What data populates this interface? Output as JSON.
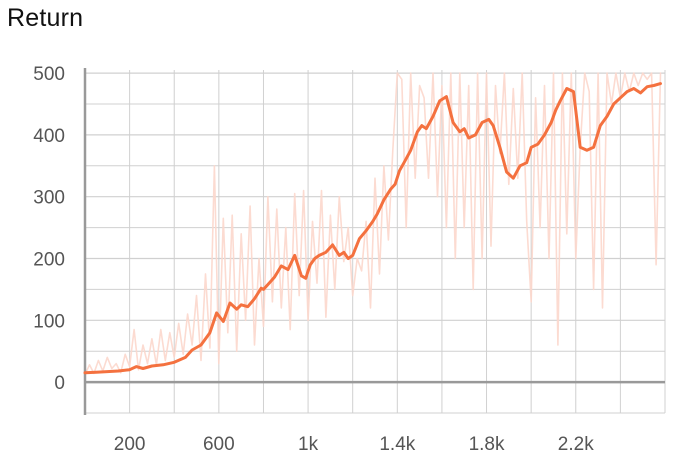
{
  "chart_data": {
    "type": "line",
    "title": "Return",
    "xlabel": "",
    "ylabel": "",
    "xlim": [
      0,
      2600
    ],
    "ylim": [
      -50,
      505
    ],
    "x_ticks": [
      200,
      600,
      1000,
      1400,
      1800,
      2200
    ],
    "x_tick_labels": [
      "200",
      "600",
      "1k",
      "1.4k",
      "1.8k",
      "2.2k"
    ],
    "y_ticks": [
      0,
      100,
      200,
      300,
      400,
      500
    ],
    "y_tick_labels": [
      "0",
      "100",
      "200",
      "300",
      "400",
      "500"
    ],
    "grid": true,
    "legend": "none",
    "colors": {
      "smoothed": "#f4713f",
      "raw": "#fcd7cc",
      "grid": "#d0d0d0",
      "axis": "#999999"
    },
    "series": [
      {
        "role": "smoothed",
        "x": [
          0,
          50,
          100,
          150,
          200,
          230,
          260,
          300,
          350,
          400,
          450,
          480,
          520,
          560,
          590,
          620,
          650,
          680,
          700,
          730,
          760,
          790,
          800,
          830,
          850,
          880,
          910,
          940,
          970,
          990,
          1000,
          1010,
          1030,
          1050,
          1080,
          1110,
          1140,
          1160,
          1180,
          1200,
          1230,
          1260,
          1290,
          1310,
          1340,
          1370,
          1390,
          1410,
          1430,
          1460,
          1490,
          1510,
          1530,
          1560,
          1590,
          1620,
          1650,
          1680,
          1700,
          1720,
          1750,
          1780,
          1810,
          1830,
          1860,
          1890,
          1920,
          1950,
          1980,
          2000,
          2030,
          2060,
          2090,
          2110,
          2130,
          2160,
          2190,
          2220,
          2250,
          2280,
          2310,
          2340,
          2370,
          2400,
          2430,
          2460,
          2490,
          2520,
          2550,
          2580
        ],
        "y": [
          15,
          16,
          17,
          18,
          20,
          25,
          22,
          26,
          28,
          32,
          40,
          52,
          60,
          80,
          112,
          98,
          128,
          118,
          125,
          122,
          135,
          152,
          150,
          162,
          170,
          188,
          182,
          205,
          172,
          168,
          180,
          190,
          200,
          205,
          210,
          222,
          205,
          210,
          200,
          205,
          232,
          245,
          260,
          272,
          295,
          312,
          320,
          342,
          355,
          375,
          405,
          415,
          410,
          430,
          455,
          462,
          420,
          405,
          410,
          395,
          400,
          420,
          425,
          415,
          380,
          340,
          330,
          350,
          355,
          380,
          385,
          400,
          420,
          440,
          455,
          475,
          470,
          380,
          375,
          380,
          415,
          430,
          450,
          460,
          470,
          475,
          468,
          478,
          480,
          483
        ]
      },
      {
        "role": "raw",
        "x": [
          0,
          20,
          40,
          60,
          80,
          100,
          120,
          140,
          160,
          180,
          200,
          220,
          240,
          260,
          280,
          300,
          320,
          340,
          360,
          380,
          400,
          420,
          440,
          460,
          480,
          500,
          520,
          540,
          560,
          580,
          600,
          620,
          640,
          660,
          680,
          700,
          720,
          740,
          760,
          780,
          800,
          820,
          840,
          860,
          880,
          900,
          920,
          940,
          960,
          980,
          1000,
          1020,
          1040,
          1060,
          1080,
          1100,
          1120,
          1140,
          1160,
          1180,
          1200,
          1220,
          1240,
          1260,
          1280,
          1300,
          1320,
          1340,
          1360,
          1380,
          1400,
          1420,
          1440,
          1460,
          1480,
          1500,
          1520,
          1540,
          1560,
          1580,
          1600,
          1620,
          1640,
          1660,
          1680,
          1700,
          1720,
          1740,
          1760,
          1780,
          1800,
          1820,
          1840,
          1860,
          1880,
          1900,
          1920,
          1940,
          1960,
          1980,
          2000,
          2020,
          2040,
          2060,
          2080,
          2100,
          2120,
          2140,
          2160,
          2180,
          2200,
          2220,
          2240,
          2260,
          2280,
          2300,
          2320,
          2340,
          2360,
          2380,
          2400,
          2420,
          2440,
          2460,
          2480,
          2500,
          2520,
          2540,
          2560,
          2580
        ],
        "y": [
          12,
          28,
          14,
          35,
          18,
          40,
          22,
          30,
          15,
          45,
          25,
          85,
          20,
          60,
          30,
          70,
          28,
          85,
          35,
          80,
          40,
          95,
          45,
          110,
          60,
          140,
          35,
          175,
          55,
          350,
          30,
          265,
          80,
          270,
          50,
          240,
          100,
          285,
          60,
          200,
          90,
          300,
          130,
          280,
          120,
          250,
          85,
          305,
          140,
          310,
          100,
          260,
          160,
          310,
          105,
          270,
          150,
          300,
          195,
          250,
          140,
          200,
          180,
          260,
          120,
          330,
          175,
          350,
          230,
          375,
          500,
          490,
          250,
          500,
          330,
          480,
          460,
          330,
          500,
          300,
          480,
          250,
          500,
          200,
          500,
          250,
          480,
          150,
          500,
          200,
          500,
          220,
          480,
          370,
          500,
          320,
          475,
          330,
          500,
          260,
          130,
          460,
          250,
          480,
          200,
          500,
          60,
          500,
          240,
          500,
          200,
          380,
          500,
          470,
          150,
          500,
          120,
          500,
          450,
          500,
          460,
          500,
          470,
          500,
          480,
          500,
          490,
          500,
          190,
          500
        ]
      }
    ]
  }
}
